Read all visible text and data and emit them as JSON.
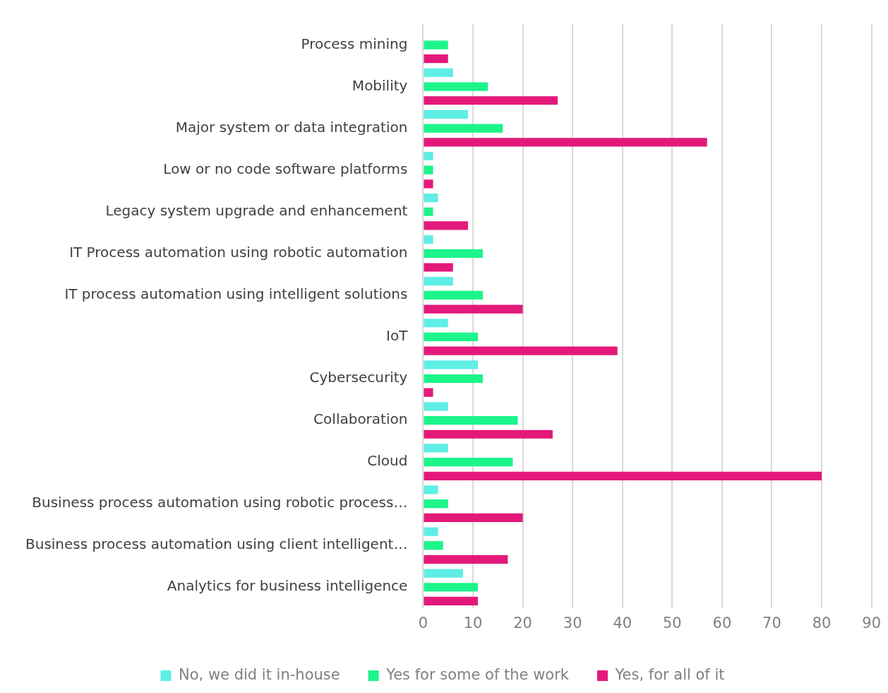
{
  "chart_data": {
    "type": "bar",
    "orientation": "horizontal",
    "categories": [
      "Process mining",
      "Mobility",
      "Major system or data integration",
      "Low or no code software platforms",
      "Legacy system upgrade and enhancement",
      "IT Process automation using robotic automation",
      "IT process automation using intelligent solutions",
      "IoT",
      "Cybersecurity",
      "Collaboration",
      "Cloud",
      "Business process automation using robotic process…",
      "Business process automation using client intelligent…",
      "Analytics for business intelligence"
    ],
    "series": [
      {
        "name": "No, we did it in-house",
        "color": "#5eeee6",
        "values": [
          0,
          6,
          9,
          2,
          3,
          2,
          6,
          5,
          11,
          5,
          5,
          3,
          3,
          8
        ]
      },
      {
        "name": "Yes for some of the work",
        "color": "#1cf58a",
        "values": [
          5,
          13,
          16,
          2,
          2,
          12,
          12,
          11,
          12,
          19,
          18,
          5,
          4,
          11
        ]
      },
      {
        "name": "Yes, for all of it",
        "color": "#e3197a",
        "values": [
          5,
          27,
          57,
          2,
          9,
          6,
          20,
          39,
          2,
          26,
          80,
          20,
          17,
          11
        ]
      }
    ],
    "xlim": [
      0,
      90
    ],
    "xticks": [
      0,
      10,
      20,
      30,
      40,
      50,
      60,
      70,
      80,
      90
    ],
    "grid": "x",
    "legend": "bottom"
  }
}
